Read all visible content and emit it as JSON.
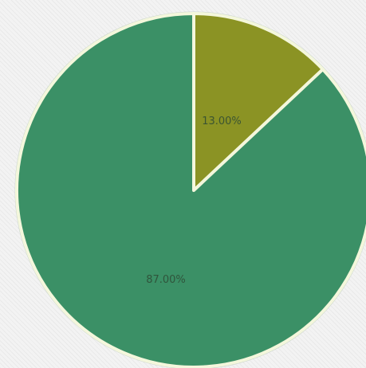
{
  "chart_data": {
    "type": "pie",
    "title": "",
    "legend": "none",
    "start_angle_deg": 0,
    "direction": "clockwise",
    "slices": [
      {
        "value": 13.0,
        "label": "13.00%",
        "color": "#8b9324"
      },
      {
        "value": 87.0,
        "label": "87.00%",
        "color": "#3b9066"
      }
    ],
    "border_color": "#f4f7dc",
    "outline_color": "#c9d4cd"
  }
}
